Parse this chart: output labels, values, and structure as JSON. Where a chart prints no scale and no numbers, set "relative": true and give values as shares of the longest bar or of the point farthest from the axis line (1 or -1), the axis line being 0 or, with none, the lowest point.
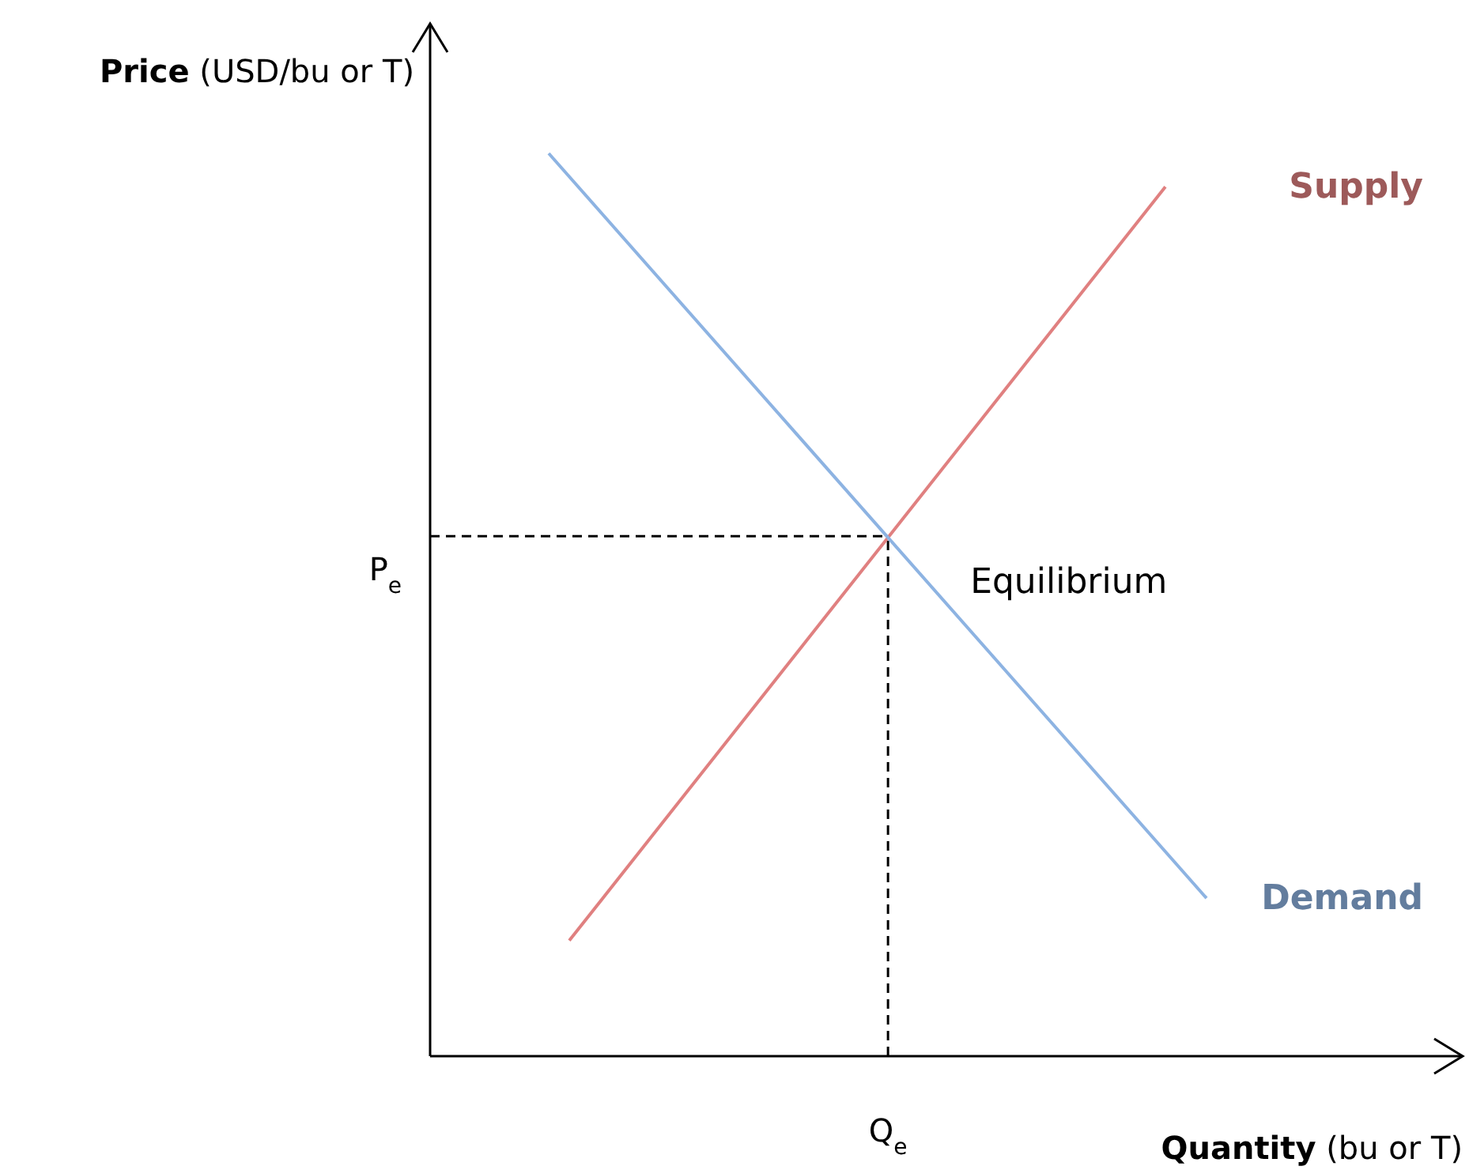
{
  "chart_data": {
    "type": "line",
    "relative": true,
    "xlabel": "Quantity (bu or T)",
    "ylabel": "Price (USD/bu or T)",
    "categories": [
      null,
      null,
      null,
      null,
      null,
      null,
      null,
      null,
      null,
      null,
      null,
      null,
      null,
      null,
      null,
      null,
      null,
      null,
      null,
      null,
      null,
      null,
      null,
      null,
      null,
      null,
      null,
      null,
      null,
      null,
      null,
      null,
      null
    ],
    "series": [
      {
        "name": "Supply",
        "color": "#e08080",
        "values": [
          null,
          0.128,
          null,
          null,
          null,
          null,
          null,
          null,
          null,
          null,
          null,
          null,
          null,
          null,
          null,
          null,
          null,
          null,
          null,
          null,
          null,
          null,
          null,
          null,
          null,
          null,
          null,
          null,
          null,
          null,
          0.963,
          null,
          null
        ]
      },
      {
        "name": "Demand",
        "color": "#8db3e2",
        "values": [
          1,
          null,
          null,
          null,
          null,
          null,
          null,
          null,
          null,
          null,
          null,
          null,
          null,
          null,
          null,
          null,
          null,
          null,
          null,
          null,
          null,
          null,
          null,
          null,
          null,
          null,
          null,
          null,
          null,
          null,
          null,
          null,
          0.175
        ]
      }
    ],
    "ref_lines": [
      {
        "axis": "y",
        "value": 0.576,
        "label": "P$_{e}$",
        "line_style": "dashed",
        "color": "#000000"
      }
    ],
    "annotations": [
      "Q$_{e}$",
      "Equilibrium"
    ],
    "line_style": "solid",
    "marker": "none",
    "legend": false
  }
}
